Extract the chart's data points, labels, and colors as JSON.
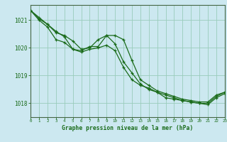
{
  "title": "Graphe pression niveau de la mer (hPa)",
  "bg_color": "#cce8f0",
  "grid_color": "#99ccbb",
  "line_color": "#1a6b1a",
  "xlim": [
    0,
    23
  ],
  "ylim": [
    1017.5,
    1021.55
  ],
  "yticks": [
    1018,
    1019,
    1020,
    1021
  ],
  "xticks": [
    0,
    1,
    2,
    3,
    4,
    5,
    6,
    7,
    8,
    9,
    10,
    11,
    12,
    13,
    14,
    15,
    16,
    17,
    18,
    19,
    20,
    21,
    22,
    23
  ],
  "series1_x": [
    0,
    1,
    2,
    3,
    4,
    5,
    6,
    7,
    8,
    9,
    10,
    11,
    12,
    13,
    14,
    15,
    16,
    17,
    18,
    19,
    20,
    21,
    22,
    23
  ],
  "series1_y": [
    1021.35,
    1021.1,
    1020.85,
    1020.6,
    1020.4,
    1019.95,
    1019.9,
    1020.05,
    1020.05,
    1020.45,
    1020.45,
    1020.3,
    1019.55,
    1018.85,
    1018.65,
    1018.45,
    1018.35,
    1018.25,
    1018.15,
    1018.1,
    1018.05,
    1018.05,
    1018.3,
    1018.4
  ],
  "series2_x": [
    0,
    1,
    2,
    3,
    4,
    5,
    6,
    7,
    8,
    9,
    10,
    11,
    12,
    13,
    14,
    15,
    16,
    17,
    18,
    19,
    20,
    21,
    22,
    23
  ],
  "series2_y": [
    1021.35,
    1021.05,
    1020.85,
    1020.55,
    1020.45,
    1020.25,
    1019.95,
    1020.0,
    1020.3,
    1020.45,
    1020.15,
    1019.5,
    1019.1,
    1018.7,
    1018.5,
    1018.4,
    1018.2,
    1018.15,
    1018.1,
    1018.05,
    1018.0,
    1018.0,
    1018.25,
    1018.4
  ],
  "series3_x": [
    0,
    1,
    2,
    3,
    4,
    5,
    6,
    7,
    8,
    9,
    10,
    11,
    12,
    13,
    14,
    15,
    16,
    17,
    18,
    19,
    20,
    21,
    22,
    23
  ],
  "series3_y": [
    1021.35,
    1021.0,
    1020.75,
    1020.3,
    1020.2,
    1019.95,
    1019.85,
    1019.95,
    1020.0,
    1020.1,
    1019.9,
    1019.3,
    1018.85,
    1018.65,
    1018.55,
    1018.4,
    1018.3,
    1018.2,
    1018.1,
    1018.05,
    1018.0,
    1017.95,
    1018.2,
    1018.35
  ],
  "font_family": "monospace"
}
